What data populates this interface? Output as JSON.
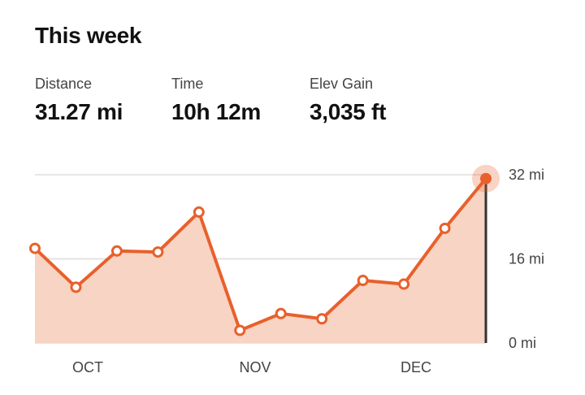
{
  "header": {
    "title": "This week"
  },
  "stats": [
    {
      "label": "Distance",
      "value": "31.27 mi"
    },
    {
      "label": "Time",
      "value": "10h 12m"
    },
    {
      "label": "Elev Gain",
      "value": "3,035 ft"
    }
  ],
  "colors": {
    "accent": "#e8602c",
    "fill": "#f7d4c3",
    "grid": "#dddddd",
    "marker": "#333333"
  },
  "chart_data": {
    "type": "area",
    "title": "",
    "xlabel": "",
    "ylabel": "",
    "ylim": [
      0,
      32
    ],
    "y_ticks": [
      "0 mi",
      "16 mi",
      "32 mi"
    ],
    "x_ticks": [
      "OCT",
      "NOV",
      "DEC"
    ],
    "grid": true,
    "series": [
      {
        "values": [
          18.0,
          10.6,
          17.5,
          17.3,
          24.9,
          2.4,
          5.6,
          4.6,
          11.9,
          11.2,
          21.8,
          31.27
        ]
      }
    ]
  }
}
